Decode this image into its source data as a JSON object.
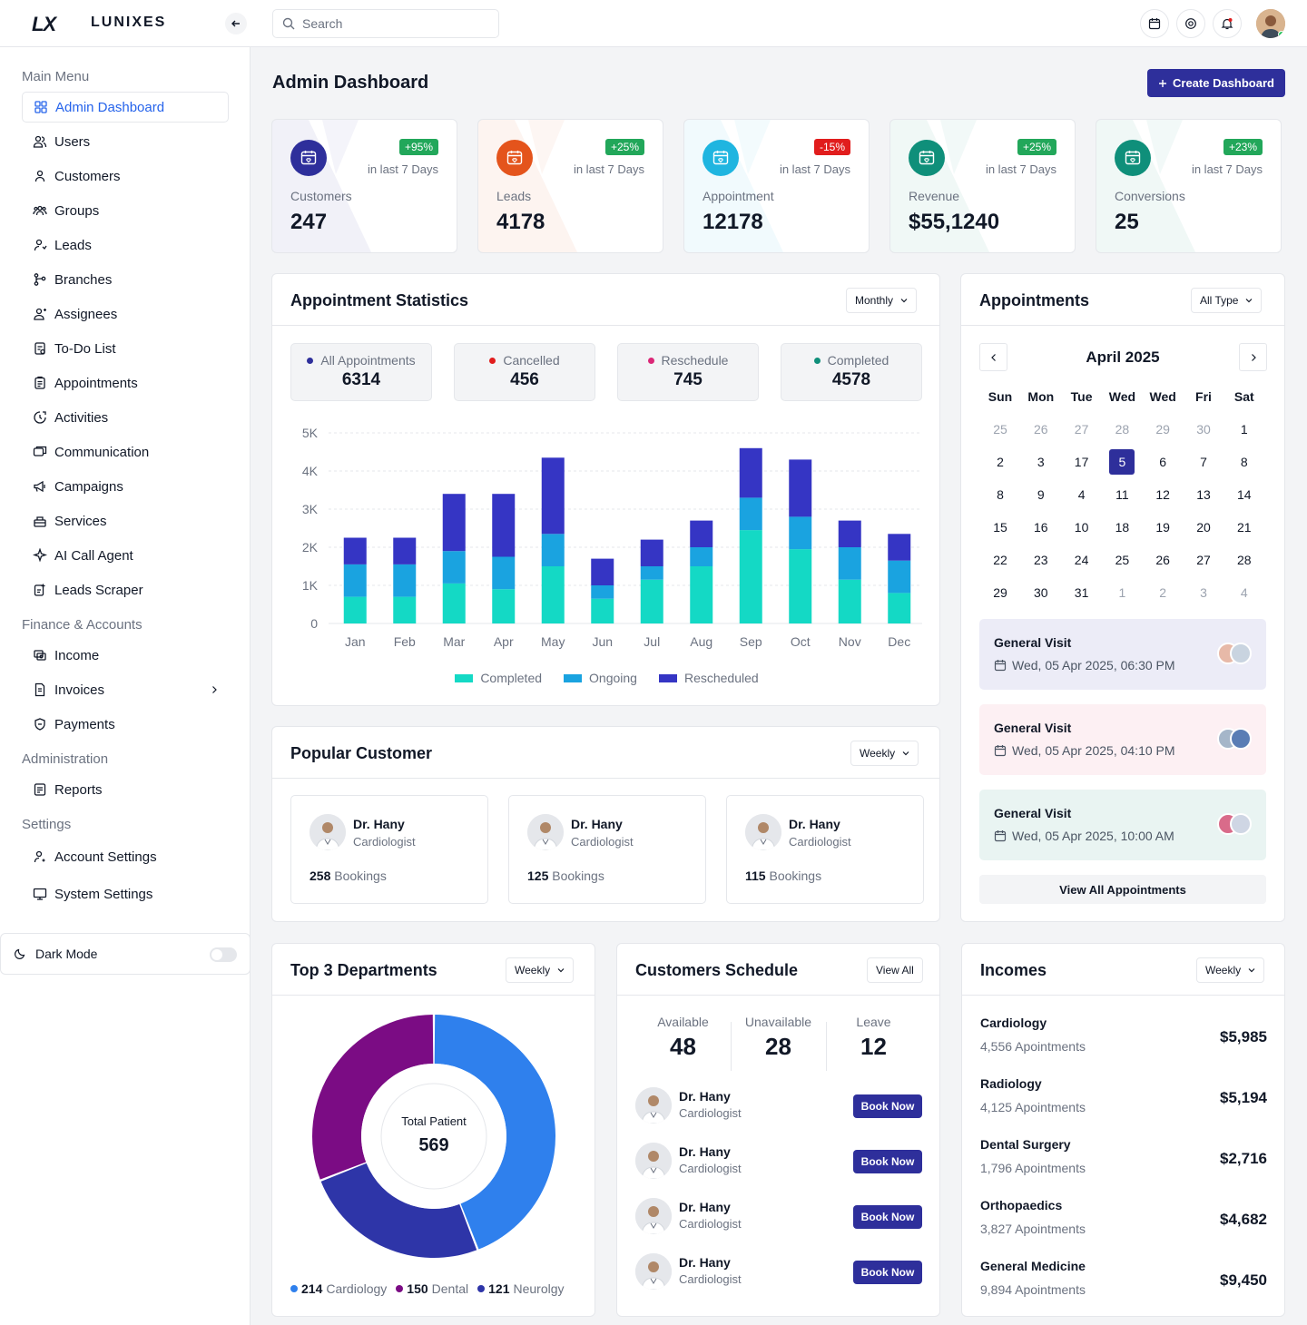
{
  "brand": {
    "mark": "LX",
    "name": "LUNIXES"
  },
  "search": {
    "placeholder": "Search"
  },
  "sidebar": {
    "sections": {
      "main": "Main Menu",
      "finance": "Finance & Accounts",
      "admin": "Administration",
      "settings": "Settings"
    },
    "main_items": [
      {
        "label": "Admin Dashboard",
        "icon": "grid-icon",
        "active": true
      },
      {
        "label": "Users",
        "icon": "users-icon"
      },
      {
        "label": "Customers",
        "icon": "customer-icon"
      },
      {
        "label": "Groups",
        "icon": "groups-icon"
      },
      {
        "label": "Leads",
        "icon": "leads-icon"
      },
      {
        "label": "Branches",
        "icon": "branch-icon"
      },
      {
        "label": "Assignees",
        "icon": "assignee-icon"
      },
      {
        "label": "To-Do List",
        "icon": "todo-icon"
      },
      {
        "label": "Appointments",
        "icon": "clipboard-icon"
      },
      {
        "label": "Activities",
        "icon": "activity-icon"
      },
      {
        "label": "Communication",
        "icon": "chat-icon"
      },
      {
        "label": "Campaigns",
        "icon": "megaphone-icon"
      },
      {
        "label": "Services",
        "icon": "services-icon"
      },
      {
        "label": "AI Call Agent",
        "icon": "sparkle-icon"
      },
      {
        "label": "Leads Scraper",
        "icon": "scraper-icon"
      }
    ],
    "finance_items": [
      {
        "label": "Income",
        "icon": "income-icon"
      },
      {
        "label": "Invoices",
        "icon": "invoice-icon"
      },
      {
        "label": "Payments",
        "icon": "payment-icon"
      }
    ],
    "admin_items": [
      {
        "label": "Reports",
        "icon": "report-icon"
      }
    ],
    "settings_items": [
      {
        "label": "Account Settings",
        "icon": "account-icon"
      },
      {
        "label": "System Settings",
        "icon": "system-icon"
      }
    ],
    "dark_mode": {
      "label": "Dark Mode",
      "enabled": false
    }
  },
  "header": {
    "title": "Admin Dashboard",
    "create_button": "Create Dashboard"
  },
  "stats": [
    {
      "label": "Customers",
      "value": "247",
      "change": "+95%",
      "period": "in last 7 Days",
      "color": "#2e2f9b",
      "badge_color": "#22a75a"
    },
    {
      "label": "Leads",
      "value": "4178",
      "change": "+25%",
      "period": "in last 7 Days",
      "color": "#e4541c",
      "badge_color": "#22a75a"
    },
    {
      "label": "Appointment",
      "value": "12178",
      "change": "-15%",
      "period": "in last 7 Days",
      "color": "#1fb5e0",
      "badge_color": "#e11d1d"
    },
    {
      "label": "Revenue",
      "value": "$55,1240",
      "change": "+25%",
      "period": "in last 7 Days",
      "color": "#0f8f7a",
      "badge_color": "#22a75a"
    },
    {
      "label": "Conversions",
      "value": "25",
      "change": "+23%",
      "period": "in last 7 Days",
      "color": "#0f8f7a",
      "badge_color": "#22a75a"
    }
  ],
  "appointment_stats": {
    "title": "Appointment Statistics",
    "filter": "Monthly",
    "summary": [
      {
        "label": "All Appointments",
        "value": "6314",
        "color": "#2e2f9b"
      },
      {
        "label": "Cancelled",
        "value": "456",
        "color": "#e11d1d"
      },
      {
        "label": "Reschedule",
        "value": "745",
        "color": "#db2777"
      },
      {
        "label": "Completed",
        "value": "4578",
        "color": "#0f8f7a"
      }
    ]
  },
  "chart_data": {
    "type": "bar",
    "stacked": true,
    "categories": [
      "Jan",
      "Feb",
      "Mar",
      "Apr",
      "May",
      "Jun",
      "Jul",
      "Aug",
      "Sep",
      "Oct",
      "Nov",
      "Dec"
    ],
    "series": [
      {
        "name": "Completed",
        "color": "#14d9c5",
        "values": [
          700,
          700,
          1050,
          900,
          1500,
          650,
          1150,
          1500,
          2450,
          1950,
          1150,
          800
        ]
      },
      {
        "name": "Ongoing",
        "color": "#1aa3e0",
        "values": [
          850,
          850,
          850,
          850,
          850,
          350,
          350,
          500,
          850,
          850,
          850,
          850
        ]
      },
      {
        "name": "Rescheduled",
        "color": "#3535c4",
        "values": [
          700,
          700,
          1500,
          1650,
          2000,
          700,
          700,
          700,
          1300,
          1500,
          700,
          700
        ]
      }
    ],
    "yticks": [
      "0",
      "1K",
      "2K",
      "3K",
      "4K",
      "5K"
    ],
    "ylim": [
      0,
      5000
    ],
    "grid": true,
    "legend": "bottom"
  },
  "appointments": {
    "title": "Appointments",
    "filter": "All Type",
    "month": "April 2025",
    "weekdays": [
      "Sun",
      "Mon",
      "Tue",
      "Wed",
      "Wed",
      "Fri",
      "Sat"
    ],
    "weeks": [
      [
        {
          "d": "25",
          "m": true
        },
        {
          "d": "26",
          "m": true
        },
        {
          "d": "27",
          "m": true
        },
        {
          "d": "28",
          "m": true
        },
        {
          "d": "29",
          "m": true
        },
        {
          "d": "30",
          "m": true
        },
        {
          "d": "1"
        }
      ],
      [
        {
          "d": "2"
        },
        {
          "d": "3"
        },
        {
          "d": "17"
        },
        {
          "d": "5",
          "sel": true
        },
        {
          "d": "6"
        },
        {
          "d": "7"
        },
        {
          "d": "8"
        }
      ],
      [
        {
          "d": "8"
        },
        {
          "d": "9"
        },
        {
          "d": "4"
        },
        {
          "d": "11"
        },
        {
          "d": "12"
        },
        {
          "d": "13"
        },
        {
          "d": "14"
        }
      ],
      [
        {
          "d": "15"
        },
        {
          "d": "16"
        },
        {
          "d": "10"
        },
        {
          "d": "18"
        },
        {
          "d": "19"
        },
        {
          "d": "20"
        },
        {
          "d": "21"
        }
      ],
      [
        {
          "d": "22"
        },
        {
          "d": "23"
        },
        {
          "d": "24"
        },
        {
          "d": "25"
        },
        {
          "d": "26"
        },
        {
          "d": "27"
        },
        {
          "d": "28"
        }
      ],
      [
        {
          "d": "29"
        },
        {
          "d": "30"
        },
        {
          "d": "31"
        },
        {
          "d": "1",
          "m": true
        },
        {
          "d": "2",
          "m": true
        },
        {
          "d": "3",
          "m": true
        },
        {
          "d": "4",
          "m": true
        }
      ]
    ],
    "visits": [
      {
        "title": "General Visit",
        "date": "Wed, 05 Apr 2025, 06:30 PM",
        "bg": "#ececf7"
      },
      {
        "title": "General Visit",
        "date": "Wed, 05 Apr 2025, 04:10 PM",
        "bg": "#fdf0f3"
      },
      {
        "title": "General Visit",
        "date": "Wed, 05 Apr 2025, 10:00 AM",
        "bg": "#e9f4f2"
      }
    ],
    "view_all": "View All Appointments"
  },
  "popular_customer": {
    "title": "Popular Customer",
    "filter": "Weekly",
    "items": [
      {
        "name": "Dr. Hany",
        "specialty": "Cardiologist",
        "count": "258",
        "unit": "Bookings"
      },
      {
        "name": "Dr. Hany",
        "specialty": "Cardiologist",
        "count": "125",
        "unit": "Bookings"
      },
      {
        "name": "Dr. Hany",
        "specialty": "Cardiologist",
        "count": "115",
        "unit": "Bookings"
      }
    ]
  },
  "departments": {
    "title": "Top 3 Departments",
    "filter": "Weekly",
    "center_label": "Total Patient",
    "center_value": "569",
    "slices": [
      {
        "name": "Cardiology",
        "value": 214,
        "color": "#2f80ed"
      },
      {
        "name": "Dental",
        "value": 150,
        "color": "#7b0c84"
      },
      {
        "name": "Neurolgy",
        "value": 121,
        "color": "#2e35a8"
      }
    ],
    "legend": [
      {
        "value": "214",
        "name": "Cardiology",
        "color": "#2f80ed"
      },
      {
        "value": "150",
        "name": "Dental",
        "color": "#7b0c84"
      },
      {
        "value": "121",
        "name": "Neurolgy",
        "color": "#2e35a8"
      }
    ]
  },
  "schedule": {
    "title": "Customers Schedule",
    "view_all": "View All",
    "summary": [
      {
        "label": "Available",
        "value": "48"
      },
      {
        "label": "Unavailable",
        "value": "28"
      },
      {
        "label": "Leave",
        "value": "12"
      }
    ],
    "doctors": [
      {
        "name": "Dr. Hany",
        "specialty": "Cardiologist",
        "action": "Book Now"
      },
      {
        "name": "Dr. Hany",
        "specialty": "Cardiologist",
        "action": "Book Now"
      },
      {
        "name": "Dr. Hany",
        "specialty": "Cardiologist",
        "action": "Book Now"
      },
      {
        "name": "Dr. Hany",
        "specialty": "Cardiologist",
        "action": "Book Now"
      }
    ]
  },
  "incomes": {
    "title": "Incomes",
    "filter": "Weekly",
    "items": [
      {
        "name": "Cardiology",
        "count": "4,556 Apointments",
        "amount": "$5,985"
      },
      {
        "name": "Radiology",
        "count": "4,125 Apointments",
        "amount": "$5,194"
      },
      {
        "name": "Dental Surgery",
        "count": "1,796 Apointments",
        "amount": "$2,716"
      },
      {
        "name": "Orthopaedics",
        "count": "3,827 Apointments",
        "amount": "$4,682"
      },
      {
        "name": "General Medicine",
        "count": "9,894 Apointments",
        "amount": "$9,450"
      }
    ]
  }
}
